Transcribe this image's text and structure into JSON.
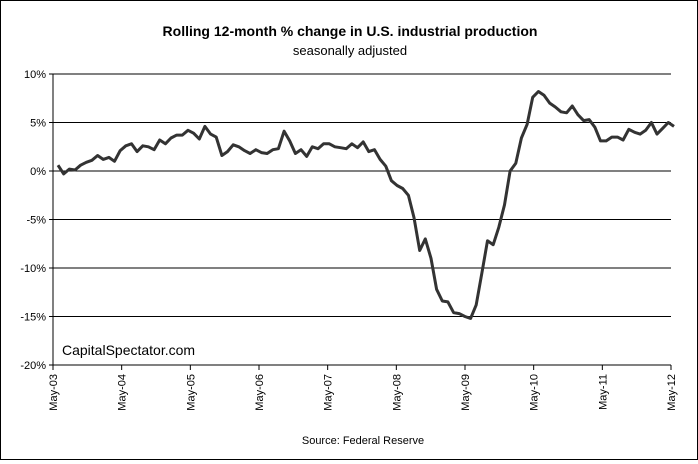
{
  "chart_data": {
    "type": "line",
    "title": "Rolling 12-month %  change in U.S. industrial production",
    "subtitle": "seasonally adjusted",
    "xlabel": "",
    "ylabel": "",
    "source": "Source: Federal Reserve",
    "watermark": "CapitalSpectator.com",
    "ylim": [
      -20,
      10
    ],
    "y_ticks": [
      10,
      5,
      0,
      -5,
      -10,
      -15,
      -20
    ],
    "y_tick_labels": [
      "10%",
      "5%",
      "0%",
      "-5%",
      "-10%",
      "-15%",
      "-20%"
    ],
    "x_tick_labels": [
      "May-03",
      "May-04",
      "May-05",
      "May-06",
      "May-07",
      "May-08",
      "May-09",
      "May-10",
      "May-11",
      "May-12"
    ],
    "grid": {
      "horizontal": true,
      "vertical": false
    },
    "line_color": "#333333",
    "series": [
      {
        "values": [
          0.6,
          -0.3,
          0.2,
          0.1,
          0.6,
          0.9,
          1.1,
          1.6,
          1.2,
          1.4,
          1.0,
          2.1,
          2.6,
          2.8,
          2.0,
          2.6,
          2.5,
          2.2,
          3.2,
          2.8,
          3.4,
          3.7,
          3.7,
          4.2,
          3.9,
          3.3,
          4.6,
          3.8,
          3.5,
          1.6,
          2.0,
          2.7,
          2.5,
          2.1,
          1.8,
          2.2,
          1.9,
          1.8,
          2.2,
          2.3,
          4.1,
          3.1,
          1.8,
          2.2,
          1.5,
          2.5,
          2.3,
          2.8,
          2.8,
          2.5,
          2.4,
          2.3,
          2.8,
          2.4,
          3.0,
          2.0,
          2.2,
          1.2,
          0.5,
          -1.0,
          -1.5,
          -1.8,
          -2.5,
          -4.8,
          -8.2,
          -7.0,
          -9.0,
          -12.2,
          -13.4,
          -13.5,
          -14.6,
          -14.7,
          -15.0,
          -15.2,
          -13.8,
          -10.5,
          -7.2,
          -7.6,
          -5.8,
          -3.5,
          0.0,
          0.8,
          3.4,
          4.8,
          7.6,
          8.2,
          7.8,
          7.0,
          6.6,
          6.1,
          6.0,
          6.7,
          5.8,
          5.2,
          5.3,
          4.5,
          3.1,
          3.1,
          3.5,
          3.5,
          3.2,
          4.3,
          4.0,
          3.8,
          4.2,
          5.0,
          3.8,
          4.4,
          5.0,
          4.6
        ]
      }
    ]
  }
}
